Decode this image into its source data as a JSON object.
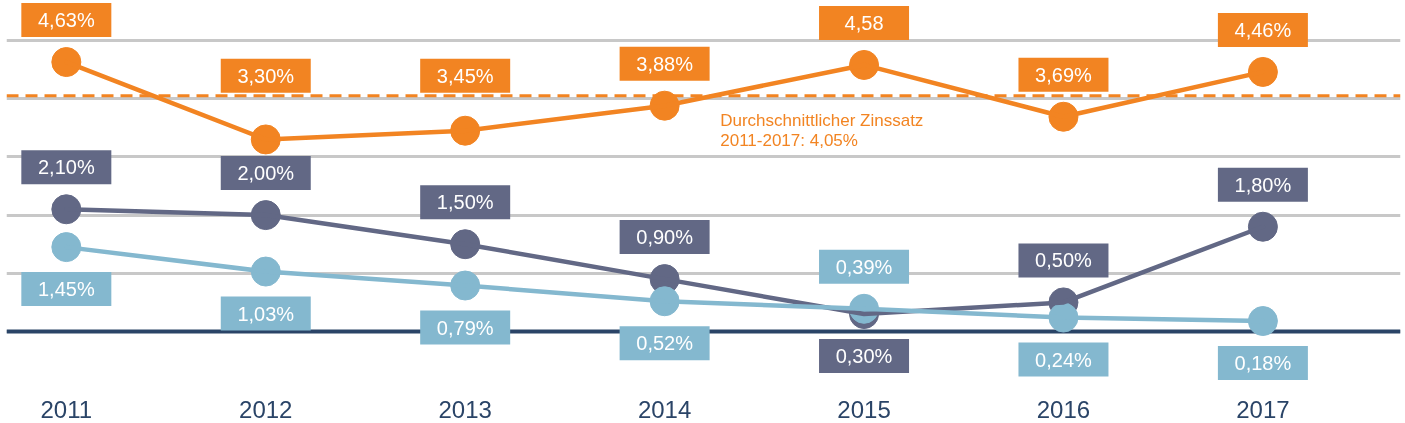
{
  "chart_data": {
    "type": "line",
    "categories": [
      "2011",
      "2012",
      "2013",
      "2014",
      "2015",
      "2016",
      "2017"
    ],
    "series": [
      {
        "color": "#f28422",
        "values": [
          4.63,
          3.3,
          3.45,
          3.88,
          4.58,
          3.69,
          4.46
        ],
        "value_labels": [
          "4,63%",
          "3,30%",
          "3,45%",
          "3,88%",
          "4,58",
          "3,69%",
          "4,46%"
        ]
      },
      {
        "color": "#626885",
        "values": [
          2.1,
          2.0,
          1.5,
          0.9,
          0.3,
          0.5,
          1.8
        ],
        "value_labels": [
          "2,10%",
          "2,00%",
          "1,50%",
          "0,90%",
          "0,30%",
          "0,50%",
          "1,80%"
        ]
      },
      {
        "color": "#84b8cf",
        "values": [
          1.45,
          1.03,
          0.79,
          0.52,
          0.39,
          0.24,
          0.18
        ],
        "value_labels": [
          "1,45%",
          "1,03%",
          "0,79%",
          "0,52%",
          "0,39%",
          "0,24%",
          "0,18%"
        ]
      }
    ],
    "yticks": [
      {
        "value": 0,
        "label": null
      },
      {
        "value": 1,
        "label": null
      },
      {
        "value": 2,
        "label": null
      },
      {
        "value": 3,
        "label": null
      },
      {
        "value": 4,
        "label": null
      },
      {
        "value": 5,
        "label": null
      }
    ],
    "tick_labels": "x",
    "grid": "y",
    "marker": "circle",
    "line_style": "solid",
    "ref_lines": [
      {
        "axis": "y",
        "value": 4.05,
        "label": "Durchschnittlicher Zinssatz\n2011-2017: 4,05%",
        "color": "#f28422",
        "line_style": "dashed"
      },
      {
        "axis": "y",
        "value": 0,
        "color": "#2a4467",
        "line_style": "solid"
      }
    ]
  }
}
